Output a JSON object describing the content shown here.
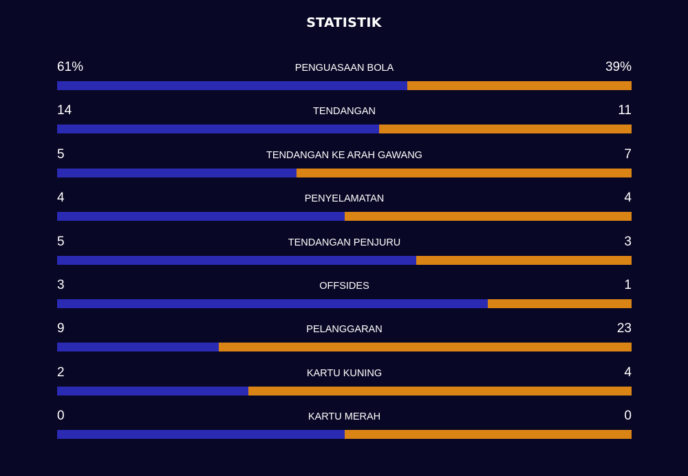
{
  "title": "STATISTIK",
  "colors": {
    "background": "#080725",
    "home": "#2b2ab3",
    "away": "#db8416",
    "text": "#ffffff"
  },
  "stats": [
    {
      "label": "PENGUASAAN BOLA",
      "home": "61%",
      "away": "39%",
      "home_share": 0.61
    },
    {
      "label": "TENDANGAN",
      "home": "14",
      "away": "11",
      "home_share": 0.56
    },
    {
      "label": "TENDANGAN KE ARAH GAWANG",
      "home": "5",
      "away": "7",
      "home_share": 0.4167
    },
    {
      "label": "PENYELAMATAN",
      "home": "4",
      "away": "4",
      "home_share": 0.5
    },
    {
      "label": "TENDANGAN PENJURU",
      "home": "5",
      "away": "3",
      "home_share": 0.625
    },
    {
      "label": "OFFSIDES",
      "home": "3",
      "away": "1",
      "home_share": 0.75
    },
    {
      "label": "PELANGGARAN",
      "home": "9",
      "away": "23",
      "home_share": 0.28125
    },
    {
      "label": "KARTU KUNING",
      "home": "2",
      "away": "4",
      "home_share": 0.3333
    },
    {
      "label": "KARTU MERAH",
      "home": "0",
      "away": "0",
      "home_share": 0.5
    }
  ]
}
